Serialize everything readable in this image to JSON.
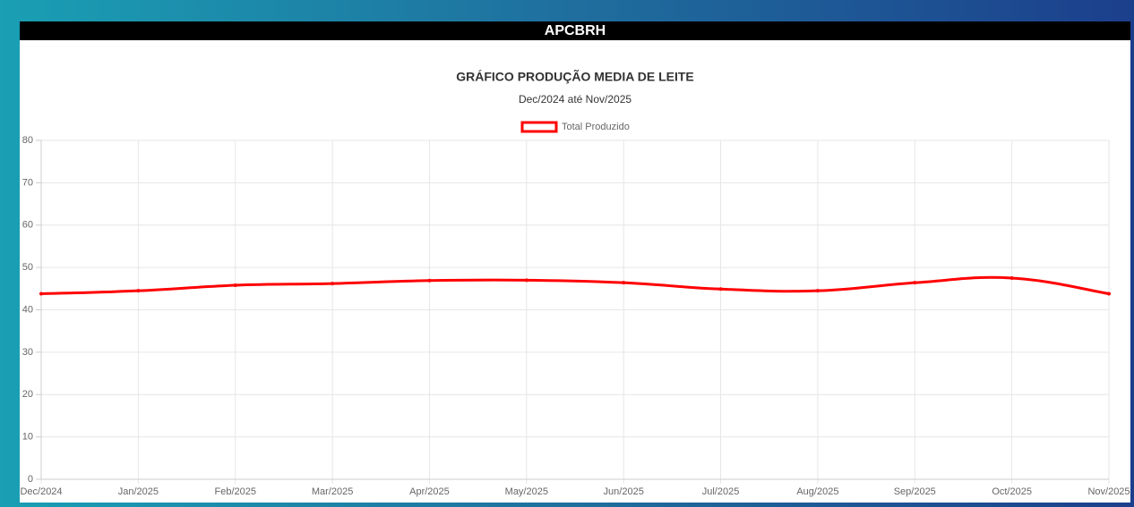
{
  "header": {
    "title": "APCBRH"
  },
  "chart_data": {
    "type": "line",
    "title": "GRÁFICO PRODUÇÃO MEDIA DE LEITE",
    "subtitle": "Dec/2024 até Nov/2025",
    "categories": [
      "Dec/2024",
      "Jan/2025",
      "Feb/2025",
      "Mar/2025",
      "Apr/2025",
      "May/2025",
      "Jun/2025",
      "Jul/2025",
      "Aug/2025",
      "Sep/2025",
      "Oct/2025",
      "Nov/2025"
    ],
    "series": [
      {
        "name": "Total Produzido",
        "color": "#ff0000",
        "values": [
          43.8,
          44.5,
          45.8,
          46.2,
          46.9,
          47.0,
          46.4,
          44.9,
          44.5,
          46.4,
          47.5,
          43.8
        ]
      }
    ],
    "ylim": [
      0,
      80
    ],
    "yticks": [
      0,
      10,
      20,
      30,
      40,
      50,
      60,
      70,
      80
    ],
    "grid": true
  }
}
